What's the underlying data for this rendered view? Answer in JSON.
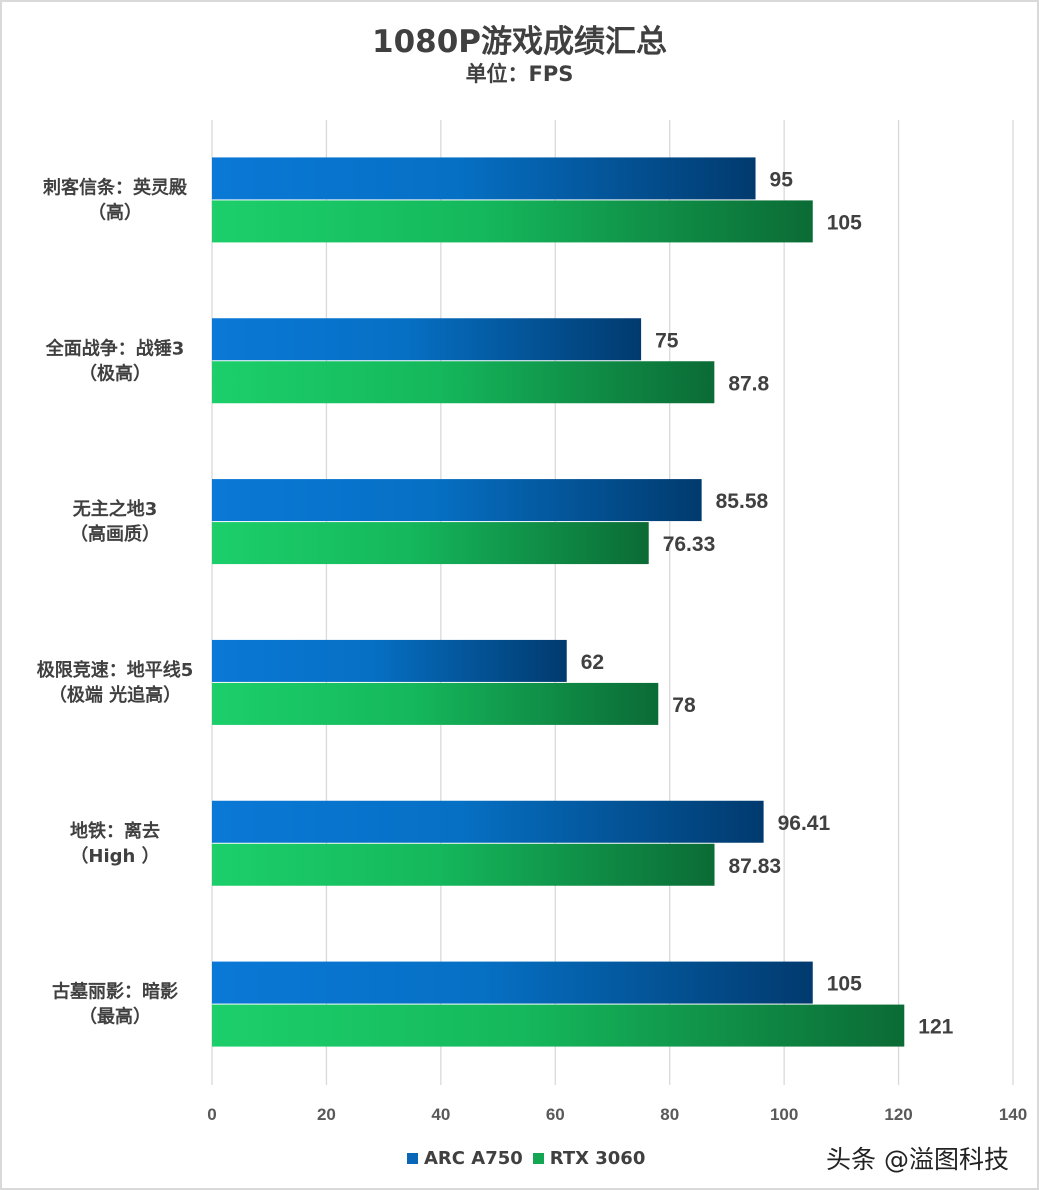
{
  "chart_data": {
    "type": "bar",
    "orientation": "horizontal",
    "title": "1080P游戏成绩汇总",
    "subtitle": "单位：FPS",
    "categories": [
      [
        "刺客信条：英灵殿",
        "（高）"
      ],
      [
        "全面战争：战锤3",
        "（极高）"
      ],
      [
        "无主之地3",
        "（高画质）"
      ],
      [
        "极限竞速：地平线5",
        "（极端 光追高）"
      ],
      [
        "地铁：离去",
        "（High ）"
      ],
      [
        "古墓丽影：暗影",
        "（最高）"
      ]
    ],
    "series": [
      {
        "name": "ARC A750",
        "values": [
          95,
          75,
          85.58,
          62,
          96.41,
          105
        ],
        "color": "#0a74cf",
        "color_end": "#013a6e"
      },
      {
        "name": "RTX 3060",
        "values": [
          105,
          87.8,
          76.33,
          78,
          87.83,
          121
        ],
        "color": "#1ccb68",
        "color_end": "#0b6b35"
      }
    ],
    "xlim": [
      0,
      140
    ],
    "xticks": [
      0,
      20,
      40,
      60,
      80,
      100,
      120,
      140
    ],
    "grid": true,
    "legend_position": "bottom",
    "data_labels": true
  },
  "watermark": "头条 @溢图科技"
}
